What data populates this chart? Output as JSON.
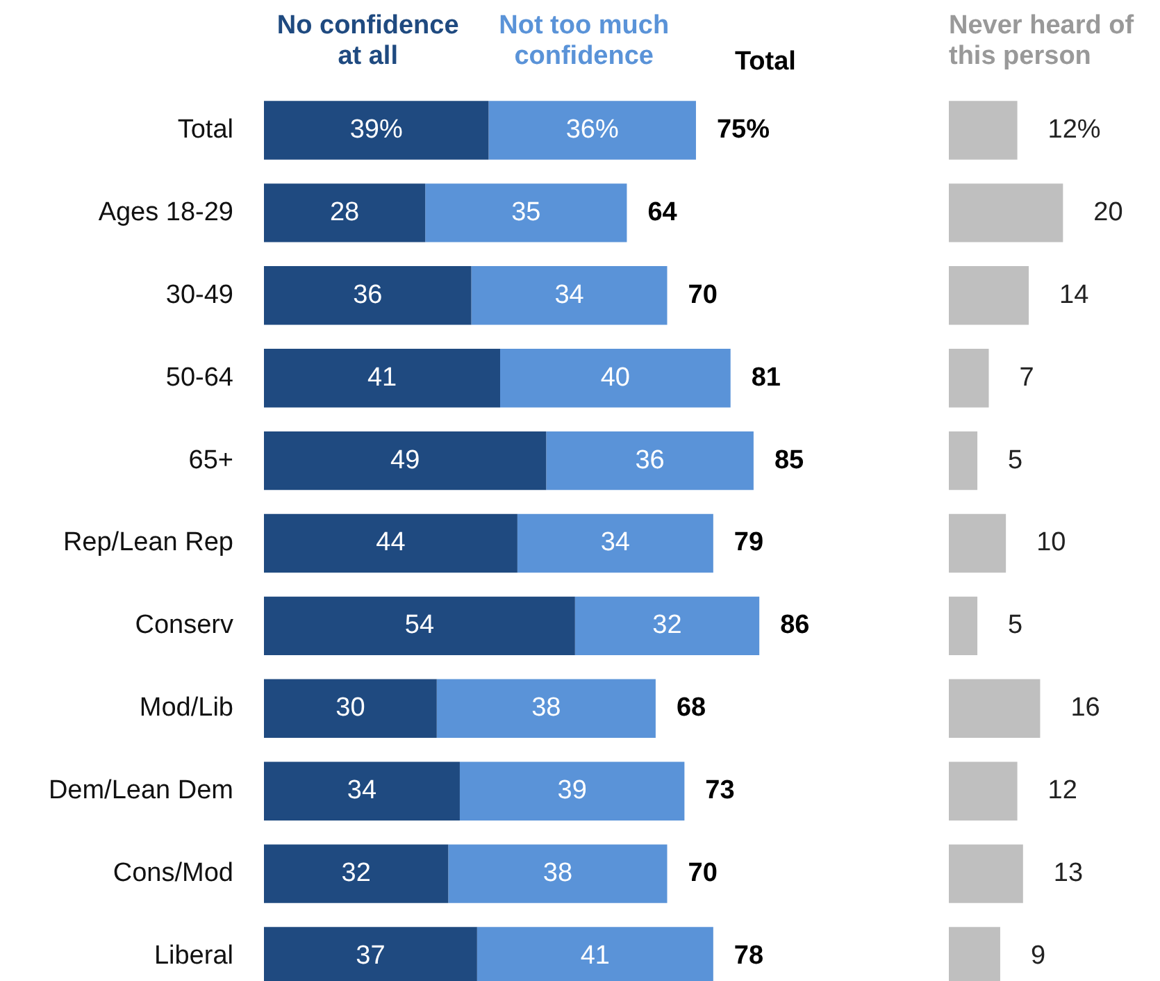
{
  "chart_data": [
    {
      "type": "bar",
      "orientation": "horizontal",
      "stacked": true,
      "legend": "top",
      "grid": false,
      "categories": [
        "Total",
        "Ages 18-29",
        "30-49",
        "50-64",
        "65+",
        "Rep/Lean Rep",
        "Conserv",
        "Mod/Lib",
        "Dem/Lean Dem",
        "Cons/Mod",
        "Liberal"
      ],
      "series": [
        {
          "name": "No confidence at all",
          "color": "#1f4a80",
          "values": [
            39,
            28,
            36,
            41,
            49,
            44,
            54,
            30,
            34,
            32,
            37
          ],
          "value_labels": [
            "39%",
            "28",
            "36",
            "41",
            "49",
            "44",
            "54",
            "30",
            "34",
            "32",
            "37"
          ]
        },
        {
          "name": "Not too much confidence",
          "color": "#5a93d8",
          "values": [
            36,
            35,
            34,
            40,
            36,
            34,
            32,
            38,
            39,
            38,
            41
          ],
          "value_labels": [
            "36%",
            "35",
            "34",
            "40",
            "36",
            "34",
            "32",
            "38",
            "39",
            "38",
            "41"
          ]
        }
      ],
      "totals": [
        "75%",
        "64",
        "70",
        "81",
        "85",
        "79",
        "86",
        "68",
        "73",
        "70",
        "78"
      ],
      "annotations": [
        "Total"
      ]
    },
    {
      "type": "bar",
      "orientation": "horizontal",
      "title": "Never heard of this person",
      "grid": false,
      "color": "#bfbfbf",
      "categories": [
        null,
        null,
        null,
        null,
        null,
        null,
        null,
        null,
        null,
        null,
        null
      ],
      "values": [
        12,
        20,
        14,
        7,
        5,
        10,
        5,
        16,
        12,
        13,
        9
      ],
      "value_labels": [
        "12%",
        "20",
        "14",
        "7",
        "5",
        "10",
        "5",
        "16",
        "12",
        "13",
        "9"
      ]
    }
  ]
}
